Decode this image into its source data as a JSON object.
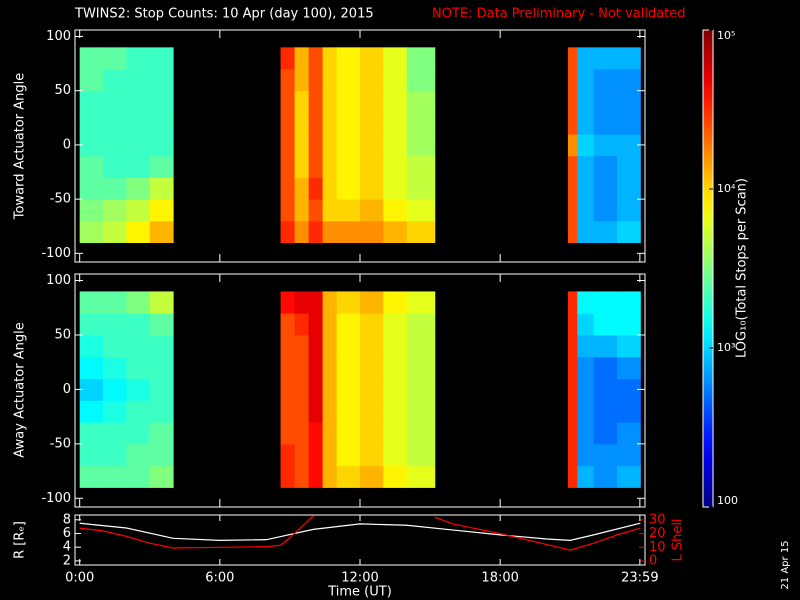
{
  "chart_data": [
    {
      "type": "heatmap",
      "title": "TWINS2: Stop Counts: 10 Apr (day 100), 2015",
      "subtitle": "NOTE: Data Preliminary - Not validated",
      "subtitle_color": "#ff0000",
      "y_label": "Toward Actuator Angle",
      "xlim": [
        -0.2,
        24.2
      ],
      "xticks": [
        0,
        6,
        12,
        18,
        23.98
      ],
      "ylim": [
        -108,
        106
      ],
      "yticks": [
        -100,
        -50,
        0,
        50,
        100
      ],
      "colormap": "jet",
      "log_scale": true,
      "colorbar": {
        "label": "LOG₁₀(Total Stops per Scan)",
        "zlim": [
          100,
          100000
        ],
        "ticks": [
          100,
          {
            "value": 1000,
            "label": "10³"
          },
          {
            "value": 10000,
            "label": "10⁴"
          },
          {
            "value": 100000,
            "label": "10⁵"
          }
        ]
      },
      "x_edges": [
        0,
        1,
        2,
        3,
        4,
        8.6,
        9.2,
        9.8,
        10.4,
        11,
        12,
        13,
        14,
        15.2,
        20.9,
        21.3,
        22,
        23,
        24
      ],
      "y_edges": [
        -90,
        -70,
        -50,
        -30,
        -10,
        10,
        30,
        50,
        70,
        90
      ],
      "z": [
        [
          4000,
          5000,
          8000,
          12500,
          null,
          32000,
          16000,
          32000,
          16000,
          16000,
          16000,
          12500,
          10000,
          null,
          25000,
          800,
          800,
          1000
        ],
        [
          3200,
          4000,
          5000,
          8000,
          null,
          25000,
          12500,
          25000,
          10000,
          10000,
          12500,
          8000,
          6300,
          null,
          25000,
          800,
          630,
          800
        ],
        [
          2500,
          2500,
          3200,
          5000,
          null,
          25000,
          12500,
          32000,
          10000,
          8000,
          10000,
          6300,
          5000,
          null,
          25000,
          800,
          630,
          800
        ],
        [
          2500,
          2000,
          2000,
          2500,
          null,
          25000,
          10000,
          25000,
          10000,
          8000,
          10000,
          6300,
          5000,
          null,
          25000,
          800,
          630,
          800
        ],
        [
          2000,
          2000,
          2000,
          2000,
          null,
          25000,
          10000,
          25000,
          10000,
          8000,
          10000,
          6300,
          4000,
          null,
          16000,
          1000,
          800,
          800
        ],
        [
          2000,
          2000,
          2000,
          2000,
          null,
          25000,
          10000,
          25000,
          10000,
          8000,
          10000,
          6300,
          4000,
          null,
          25000,
          800,
          630,
          630
        ],
        [
          2000,
          2000,
          2000,
          2000,
          null,
          25000,
          10000,
          25000,
          10000,
          8000,
          10000,
          6300,
          4000,
          null,
          25000,
          800,
          630,
          630
        ],
        [
          2500,
          2000,
          2000,
          2000,
          null,
          25000,
          12500,
          25000,
          10000,
          8000,
          10000,
          6300,
          3200,
          null,
          25000,
          800,
          630,
          630
        ],
        [
          2500,
          2500,
          2000,
          2000,
          null,
          32000,
          12500,
          25000,
          10000,
          8000,
          10000,
          6300,
          3200,
          null,
          25000,
          800,
          800,
          800
        ]
      ]
    },
    {
      "type": "heatmap",
      "y_label": "Away Actuator Angle",
      "xlim": [
        -0.2,
        24.2
      ],
      "xticks": [
        0,
        6,
        12,
        18,
        23.98
      ],
      "ylim": [
        -108,
        106
      ],
      "yticks": [
        -100,
        -50,
        0,
        50,
        100
      ],
      "colormap": "jet",
      "log_scale": true,
      "zlim": [
        100,
        100000
      ],
      "x_edges": [
        0,
        1,
        2,
        3,
        4,
        8.6,
        9.2,
        9.8,
        10.4,
        11,
        12,
        13,
        14,
        15.2,
        20.9,
        21.3,
        22,
        23,
        24
      ],
      "y_edges": [
        -90,
        -70,
        -50,
        -30,
        -10,
        10,
        30,
        50,
        70,
        90
      ],
      "z": [
        [
          2500,
          2500,
          2500,
          3200,
          null,
          32000,
          25000,
          40000,
          12500,
          10000,
          12500,
          8000,
          6300,
          null,
          32000,
          800,
          630,
          800
        ],
        [
          2000,
          2000,
          2500,
          2500,
          null,
          32000,
          25000,
          40000,
          12500,
          8000,
          10000,
          6300,
          5000,
          null,
          32000,
          630,
          630,
          630
        ],
        [
          2000,
          2000,
          2000,
          2500,
          null,
          25000,
          25000,
          40000,
          12500,
          8000,
          10000,
          6300,
          5000,
          null,
          32000,
          630,
          500,
          630
        ],
        [
          1300,
          1600,
          2000,
          2000,
          null,
          25000,
          25000,
          50000,
          12500,
          8000,
          10000,
          6300,
          5000,
          null,
          32000,
          630,
          500,
          500
        ],
        [
          1000,
          1300,
          1600,
          2000,
          null,
          25000,
          25000,
          50000,
          12500,
          8000,
          10000,
          6300,
          5000,
          null,
          32000,
          630,
          500,
          500
        ],
        [
          1300,
          1600,
          2000,
          2000,
          null,
          25000,
          25000,
          50000,
          12500,
          8000,
          10000,
          6300,
          5000,
          null,
          32000,
          630,
          500,
          630
        ],
        [
          1600,
          2000,
          2000,
          2000,
          null,
          25000,
          25000,
          50000,
          12500,
          8000,
          10000,
          6300,
          5000,
          null,
          32000,
          800,
          800,
          1000
        ],
        [
          2000,
          2000,
          2000,
          2500,
          null,
          25000,
          32000,
          50000,
          12500,
          8000,
          10000,
          6300,
          5000,
          null,
          32000,
          1000,
          1300,
          1300
        ],
        [
          2500,
          2500,
          3200,
          5000,
          null,
          40000,
          50000,
          50000,
          12500,
          10000,
          12500,
          8000,
          6300,
          null,
          32000,
          1300,
          1300,
          1300
        ]
      ]
    },
    {
      "type": "line",
      "x_label": "Time (UT)",
      "y_label": "R [Rₑ]",
      "y2_label": "L Shell",
      "y2_color": "#ff0000",
      "annotation": "21 Apr 15",
      "xlim": [
        -0.2,
        24.2
      ],
      "xticks": [
        {
          "value": 0,
          "label": "0:00"
        },
        {
          "value": 6,
          "label": "6:00"
        },
        {
          "value": 12,
          "label": "12:00"
        },
        {
          "value": 18,
          "label": "18:00"
        },
        {
          "value": 23.98,
          "label": "23:59"
        }
      ],
      "ylim": [
        1.4,
        8.7
      ],
      "yticks": [
        2,
        4,
        6,
        8
      ],
      "y2lim": [
        -2.9,
        33.6
      ],
      "y2ticks": [
        0,
        10,
        20,
        30
      ],
      "series": [
        {
          "color": "#ffffff",
          "x": [
            0,
            2,
            4,
            6,
            8,
            10,
            12,
            14,
            16,
            18,
            20,
            21,
            22,
            24
          ],
          "values": [
            7.5,
            6.8,
            5.3,
            5.0,
            5.1,
            6.6,
            7.4,
            7.2,
            6.5,
            5.8,
            5.2,
            5.0,
            5.8,
            7.5
          ]
        },
        {
          "color": "#ff0000",
          "axis": "y2",
          "x": [
            0,
            1,
            2,
            3,
            4,
            6,
            8,
            8.6,
            9,
            9.5,
            10,
            12,
            15.2,
            16,
            18,
            20,
            21,
            22,
            23,
            24
          ],
          "values": [
            24,
            22,
            18,
            13,
            9.5,
            10,
            10.5,
            11.5,
            17,
            25,
            33,
            null,
            32,
            27,
            20,
            12,
            8,
            13,
            19,
            24
          ]
        }
      ]
    }
  ]
}
